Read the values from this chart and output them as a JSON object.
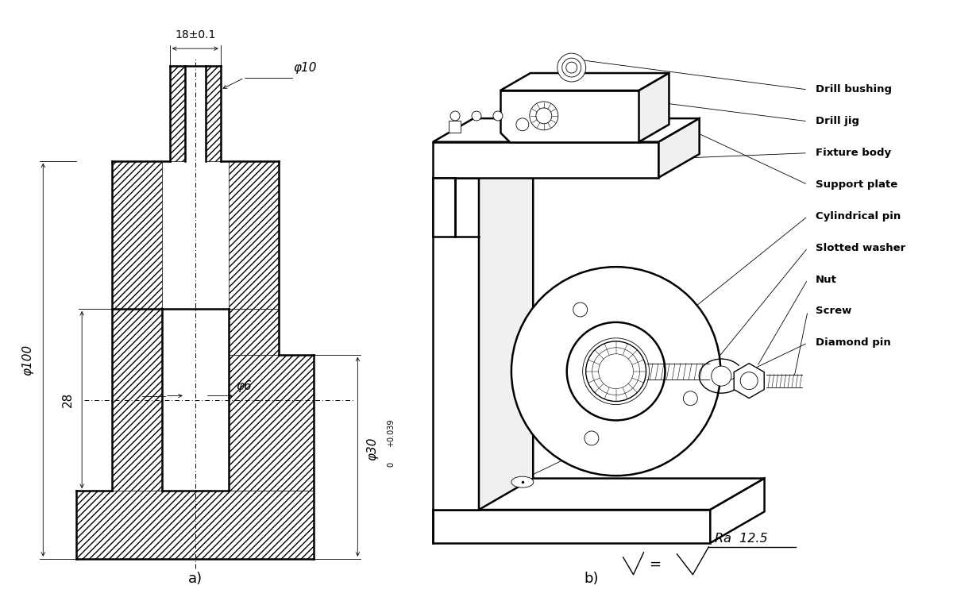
{
  "bg_color": "#ffffff",
  "line_color": "#000000",
  "label_a": "a)",
  "label_b": "b)",
  "dim_18": "18±0.1",
  "dim_phi10": "φ10",
  "dim_28": "28",
  "dim_phi100": "φ100",
  "dim_phi6": "φ6",
  "dim_phi30": "φ30",
  "labels_right": [
    "Drill bushing",
    "Drill jig",
    "Fixture body",
    "Support plate",
    "Cylindrical pin",
    "Slotted washer",
    "Nut",
    "Screw",
    "Diamond pin"
  ],
  "ra_text": "Ra  12.5"
}
